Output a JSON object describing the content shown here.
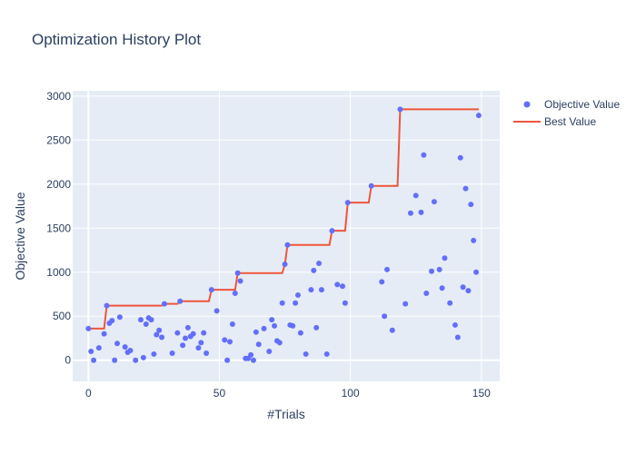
{
  "chart_data": {
    "type": "scatter",
    "title": "Optimization History Plot",
    "xlabel": "#Trials",
    "ylabel": "Objective Value",
    "xlim": [
      -6,
      157
    ],
    "ylim": [
      -240,
      3060
    ],
    "xticks": [
      0,
      50,
      100,
      150
    ],
    "yticks": [
      0,
      500,
      1000,
      1500,
      2000,
      2500,
      3000
    ],
    "grid": true,
    "legend_position": "top-right",
    "colors": {
      "plot_bg": "#e5ecf6",
      "grid": "#ffffff",
      "objective": "#636efa",
      "best": "#ef553b",
      "text": "#2a3f5f"
    },
    "series": [
      {
        "name": "Objective Value",
        "mode": "markers",
        "points": [
          [
            0,
            360
          ],
          [
            1,
            100
          ],
          [
            2,
            0
          ],
          [
            4,
            140
          ],
          [
            6,
            300
          ],
          [
            7,
            620
          ],
          [
            8,
            420
          ],
          [
            9,
            450
          ],
          [
            10,
            0
          ],
          [
            11,
            190
          ],
          [
            12,
            490
          ],
          [
            14,
            150
          ],
          [
            15,
            90
          ],
          [
            16,
            110
          ],
          [
            18,
            0
          ],
          [
            20,
            460
          ],
          [
            21,
            30
          ],
          [
            22,
            410
          ],
          [
            23,
            480
          ],
          [
            24,
            460
          ],
          [
            25,
            70
          ],
          [
            26,
            290
          ],
          [
            27,
            340
          ],
          [
            28,
            260
          ],
          [
            29,
            640
          ],
          [
            32,
            80
          ],
          [
            34,
            310
          ],
          [
            35,
            670
          ],
          [
            36,
            170
          ],
          [
            37,
            250
          ],
          [
            38,
            370
          ],
          [
            39,
            270
          ],
          [
            40,
            300
          ],
          [
            42,
            140
          ],
          [
            43,
            200
          ],
          [
            44,
            310
          ],
          [
            45,
            80
          ],
          [
            47,
            800
          ],
          [
            49,
            560
          ],
          [
            52,
            230
          ],
          [
            53,
            0
          ],
          [
            54,
            210
          ],
          [
            55,
            410
          ],
          [
            56,
            760
          ],
          [
            57,
            990
          ],
          [
            58,
            900
          ],
          [
            60,
            20
          ],
          [
            61,
            20
          ],
          [
            62,
            60
          ],
          [
            63,
            0
          ],
          [
            64,
            320
          ],
          [
            65,
            180
          ],
          [
            67,
            360
          ],
          [
            69,
            100
          ],
          [
            70,
            460
          ],
          [
            71,
            390
          ],
          [
            72,
            220
          ],
          [
            73,
            200
          ],
          [
            74,
            650
          ],
          [
            75,
            1090
          ],
          [
            76,
            1310
          ],
          [
            77,
            400
          ],
          [
            78,
            390
          ],
          [
            79,
            650
          ],
          [
            80,
            740
          ],
          [
            81,
            310
          ],
          [
            83,
            70
          ],
          [
            85,
            800
          ],
          [
            86,
            1020
          ],
          [
            87,
            370
          ],
          [
            88,
            1100
          ],
          [
            89,
            800
          ],
          [
            91,
            70
          ],
          [
            93,
            1470
          ],
          [
            95,
            860
          ],
          [
            97,
            840
          ],
          [
            98,
            650
          ],
          [
            99,
            1790
          ],
          [
            108,
            1980
          ],
          [
            112,
            890
          ],
          [
            113,
            500
          ],
          [
            114,
            1030
          ],
          [
            116,
            340
          ],
          [
            119,
            2850
          ],
          [
            121,
            640
          ],
          [
            123,
            1670
          ],
          [
            125,
            1870
          ],
          [
            127,
            1680
          ],
          [
            128,
            2330
          ],
          [
            129,
            760
          ],
          [
            131,
            1010
          ],
          [
            132,
            1800
          ],
          [
            134,
            1030
          ],
          [
            135,
            820
          ],
          [
            136,
            1160
          ],
          [
            138,
            650
          ],
          [
            140,
            400
          ],
          [
            141,
            260
          ],
          [
            142,
            2300
          ],
          [
            143,
            830
          ],
          [
            144,
            1950
          ],
          [
            145,
            790
          ],
          [
            146,
            1770
          ],
          [
            147,
            1360
          ],
          [
            148,
            1000
          ],
          [
            149,
            2780
          ]
        ]
      },
      {
        "name": "Best Value",
        "mode": "step",
        "points": [
          [
            0,
            360
          ],
          [
            6,
            360
          ],
          [
            7,
            620
          ],
          [
            28,
            620
          ],
          [
            29,
            640
          ],
          [
            34,
            640
          ],
          [
            35,
            670
          ],
          [
            46,
            670
          ],
          [
            47,
            800
          ],
          [
            56,
            800
          ],
          [
            57,
            990
          ],
          [
            74,
            990
          ],
          [
            75,
            1090
          ],
          [
            76,
            1310
          ],
          [
            92,
            1310
          ],
          [
            93,
            1470
          ],
          [
            98,
            1470
          ],
          [
            99,
            1790
          ],
          [
            107,
            1790
          ],
          [
            108,
            1980
          ],
          [
            118,
            1980
          ],
          [
            119,
            2850
          ],
          [
            149,
            2850
          ]
        ]
      }
    ]
  }
}
